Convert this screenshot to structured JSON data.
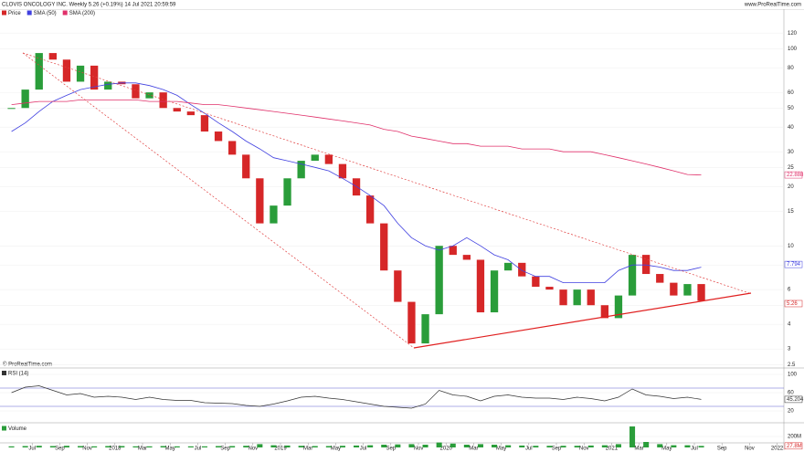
{
  "chart_data": [
    {
      "type": "candlestick",
      "title": "CLOVIS ONCOLOGY INC. Weekly 5.26 (+0.19%) 14 Jul 2021 20:59:59",
      "source": "www.ProRealTime.com",
      "copyright": "© ProRealTime.com",
      "log_scale": true,
      "x": [
        "2017-05",
        "2017-06",
        "2017-07",
        "2017-08",
        "2017-09",
        "2017-10",
        "2017-11",
        "2017-12",
        "2018-01",
        "2018-02",
        "2018-03",
        "2018-04",
        "2018-05",
        "2018-06",
        "2018-07",
        "2018-08",
        "2018-09",
        "2018-10",
        "2018-11",
        "2018-12",
        "2019-01",
        "2019-02",
        "2019-03",
        "2019-04",
        "2019-05",
        "2019-06",
        "2019-07",
        "2019-08",
        "2019-09",
        "2019-10",
        "2019-11",
        "2019-12",
        "2020-01",
        "2020-02",
        "2020-03",
        "2020-04",
        "2020-05",
        "2020-06",
        "2020-07",
        "2020-08",
        "2020-09",
        "2020-10",
        "2020-11",
        "2020-12",
        "2021-01",
        "2021-02",
        "2021-03",
        "2021-04",
        "2021-05",
        "2021-06",
        "2021-07"
      ],
      "xlim": [
        "2017-05",
        "2022-02"
      ],
      "xticks": [
        {
          "value": "2017-07",
          "label": "Jul"
        },
        {
          "value": "2017-09",
          "label": "Sep"
        },
        {
          "value": "2017-11",
          "label": "Nov"
        },
        {
          "value": "2018-01",
          "label": "2018"
        },
        {
          "value": "2018-03",
          "label": "Mar"
        },
        {
          "value": "2018-05",
          "label": "May"
        },
        {
          "value": "2018-07",
          "label": "Jul"
        },
        {
          "value": "2018-09",
          "label": "Sep"
        },
        {
          "value": "2018-11",
          "label": "Nov"
        },
        {
          "value": "2019-01",
          "label": "2019"
        },
        {
          "value": "2019-03",
          "label": "Mar"
        },
        {
          "value": "2019-05",
          "label": "May"
        },
        {
          "value": "2019-07",
          "label": "Jul"
        },
        {
          "value": "2019-09",
          "label": "Sep"
        },
        {
          "value": "2019-11",
          "label": "Nov"
        },
        {
          "value": "2020-01",
          "label": "2020"
        },
        {
          "value": "2020-03",
          "label": "Mar"
        },
        {
          "value": "2020-05",
          "label": "May"
        },
        {
          "value": "2020-07",
          "label": "Jul"
        },
        {
          "value": "2020-09",
          "label": "Sep"
        },
        {
          "value": "2020-11",
          "label": "Nov"
        },
        {
          "value": "2021-01",
          "label": "2021"
        },
        {
          "value": "2021-03",
          "label": "Mar"
        },
        {
          "value": "2021-05",
          "label": "May"
        },
        {
          "value": "2021-07",
          "label": "Jul"
        },
        {
          "value": "2021-09",
          "label": "Sep"
        },
        {
          "value": "2021-11",
          "label": "Nov"
        },
        {
          "value": "2022-01",
          "label": "2022"
        }
      ],
      "ylim": [
        2.48,
        155.3
      ],
      "yticks": [
        2.5,
        3,
        4,
        5,
        6,
        8,
        10,
        15,
        20,
        25,
        30,
        40,
        50,
        60,
        80,
        100,
        120
      ],
      "series": [
        {
          "name": "Price",
          "up_color": "#2a9d3a",
          "down_color": "#d62728",
          "values": [
            50,
            62,
            95,
            88,
            68,
            82,
            62,
            68,
            66,
            56,
            60,
            50,
            48,
            46,
            38,
            34,
            29,
            22,
            13,
            16,
            22,
            27,
            29,
            26,
            22,
            18,
            13,
            7.5,
            5.2,
            3.2,
            4.5,
            10,
            9,
            8.5,
            4.6,
            7.5,
            8.2,
            7,
            6.2,
            6,
            5,
            6,
            5,
            4.3,
            5.6,
            9,
            7.2,
            6.5,
            5.6,
            6.4,
            5.26
          ]
        },
        {
          "name": "SMA (50)",
          "color": "#4040e0",
          "values": [
            38,
            42,
            48,
            54,
            58,
            62,
            64,
            66,
            67,
            67,
            65,
            62,
            58,
            52,
            47,
            42,
            38,
            34,
            31,
            28,
            27,
            26,
            25,
            24,
            22,
            20,
            18,
            16,
            13,
            11,
            10,
            9.5,
            10,
            11,
            10,
            9,
            8.5,
            7.5,
            7,
            7,
            6.5,
            6.5,
            6.5,
            6.5,
            7.5,
            8,
            8,
            7.8,
            7.5,
            7.5,
            7.794
          ]
        },
        {
          "name": "SMA (200)",
          "color": "#e0306a",
          "values": [
            52,
            53,
            54,
            54,
            54,
            55,
            55,
            55,
            55,
            55,
            54,
            54,
            54,
            53,
            52,
            52,
            51,
            50,
            49,
            48,
            47,
            46,
            45,
            44,
            43,
            42,
            41,
            39,
            38,
            36,
            35,
            34,
            33,
            33,
            32,
            32,
            32,
            31,
            31,
            31,
            30,
            30,
            30,
            29,
            28,
            27,
            26,
            25,
            24,
            23,
            22.888
          ]
        }
      ]
    },
    {
      "type": "line",
      "ylim": [
        0,
        100
      ],
      "yticks": [
        20,
        60,
        100
      ],
      "levels": [
        30,
        70
      ],
      "series": [
        {
          "name": "RSI (14)",
          "color": "#333333",
          "values": [
            60,
            72,
            75,
            65,
            55,
            58,
            50,
            52,
            50,
            45,
            50,
            45,
            43,
            43,
            38,
            37,
            36,
            32,
            30,
            35,
            42,
            50,
            52,
            48,
            45,
            40,
            35,
            30,
            28,
            26,
            35,
            65,
            55,
            52,
            42,
            52,
            55,
            50,
            48,
            48,
            45,
            50,
            47,
            42,
            50,
            68,
            55,
            52,
            47,
            50,
            45.204
          ]
        }
      ]
    },
    {
      "type": "bar",
      "ylim": [
        0,
        400
      ],
      "yticks": [
        {
          "value": 200,
          "label": "200M"
        }
      ],
      "series": [
        {
          "name": "Volume",
          "color": "#2a9d3a",
          "values": [
            20,
            25,
            30,
            25,
            30,
            25,
            20,
            25,
            25,
            20,
            20,
            25,
            20,
            20,
            20,
            25,
            25,
            30,
            60,
            40,
            35,
            30,
            25,
            25,
            30,
            35,
            40,
            50,
            55,
            60,
            50,
            90,
            70,
            50,
            60,
            50,
            40,
            35,
            30,
            30,
            30,
            30,
            35,
            40,
            60,
            383,
            100,
            60,
            40,
            40,
            27.8
          ],
          "value_labels": [
            null,
            null,
            null,
            null,
            null,
            null,
            null,
            null,
            null,
            null,
            null,
            null,
            null,
            null,
            null,
            null,
            null,
            null,
            null,
            null,
            null,
            null,
            null,
            null,
            null,
            null,
            null,
            null,
            null,
            null,
            null,
            null,
            null,
            null,
            null,
            null,
            null,
            null,
            null,
            null,
            null,
            null,
            null,
            null,
            null,
            null,
            null,
            null,
            null,
            null,
            "27.8M"
          ]
        }
      ]
    }
  ]
}
